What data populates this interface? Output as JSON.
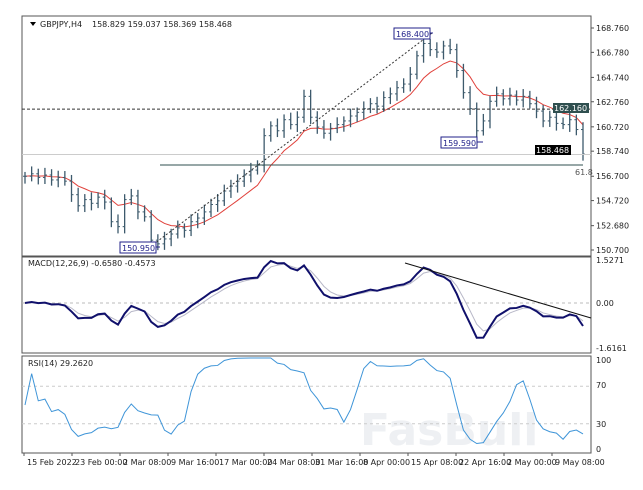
{
  "header": {
    "symbol": "GBPJPY,H4",
    "ohlc": "158.829 159.037 158.369 158.468"
  },
  "colors": {
    "candles": "#3d5a6c",
    "ma": "#e0413b",
    "macd": "#10106b",
    "signal": "#b8b8c8",
    "rsi": "#3f95d8",
    "price_tag": "#000000",
    "level_tag": "#2f4f4f"
  },
  "annotations": {
    "high": "168.400",
    "mid_low": "159.590",
    "low": "150.950",
    "fib": "61.8",
    "level": "162.160",
    "last_price": "158.468"
  },
  "macd_panel": {
    "label": "MACD(12,26,9) -0.6580 -0.4573",
    "ticks": [
      "1.5271",
      "0.00",
      "-1.6161"
    ]
  },
  "rsi_panel": {
    "label": "RSI(14) 29.2620",
    "ticks": [
      "100",
      "70",
      "30",
      "0"
    ]
  },
  "watermark": "FasBull",
  "chart_data": {
    "type": "candlestick",
    "title": "GBPJPY,H4",
    "price_axis": {
      "ticks": [
        "168.760",
        "166.780",
        "164.740",
        "162.760",
        "160.720",
        "158.740",
        "156.700",
        "154.720",
        "152.680",
        "150.700"
      ],
      "ylim": [
        150.7,
        168.76
      ]
    },
    "x_ticks": [
      "15 Feb 2022",
      "23 Feb 00:00",
      "2 Mar 08:00",
      "9 Mar 16:00",
      "17 Mar 00:00",
      "24 Mar 08:00",
      "31 Mar 16:00",
      "8 Apr 00:00",
      "15 Apr 08:00",
      "22 Apr 16:00",
      "2 May 00:00",
      "9 May 08:00"
    ],
    "close": [
      156.7,
      156.9,
      156.6,
      156.8,
      156.4,
      156.6,
      156.3,
      155.2,
      154.3,
      154.8,
      154.5,
      155.0,
      154.6,
      153.0,
      152.6,
      154.8,
      155.1,
      153.8,
      153.4,
      151.5,
      151.2,
      151.6,
      152.0,
      152.5,
      152.3,
      153.0,
      153.3,
      153.8,
      154.4,
      154.7,
      155.5,
      155.9,
      156.3,
      156.8,
      157.2,
      157.6,
      160.0,
      160.8,
      160.4,
      161.3,
      160.9,
      161.5,
      163.2,
      161.5,
      160.7,
      160.2,
      160.6,
      160.9,
      161.2,
      161.6,
      161.9,
      162.2,
      162.6,
      162.4,
      163.1,
      163.4,
      163.9,
      164.2,
      165.0,
      166.5,
      167.5,
      167.0,
      166.8,
      167.3,
      167.0,
      165.3,
      163.5,
      162.2,
      160.4,
      161.2,
      162.8,
      163.4,
      163.0,
      163.3,
      162.9,
      163.2,
      162.6,
      162.0,
      161.2,
      161.5,
      161.0,
      160.9,
      161.3,
      160.5,
      158.5
    ],
    "indicators": [
      "Moving Average",
      "MACD(12,26,9)",
      "RSI(14)"
    ],
    "horizontal_levels": [
      162.16,
      158.468
    ],
    "grid": false
  }
}
